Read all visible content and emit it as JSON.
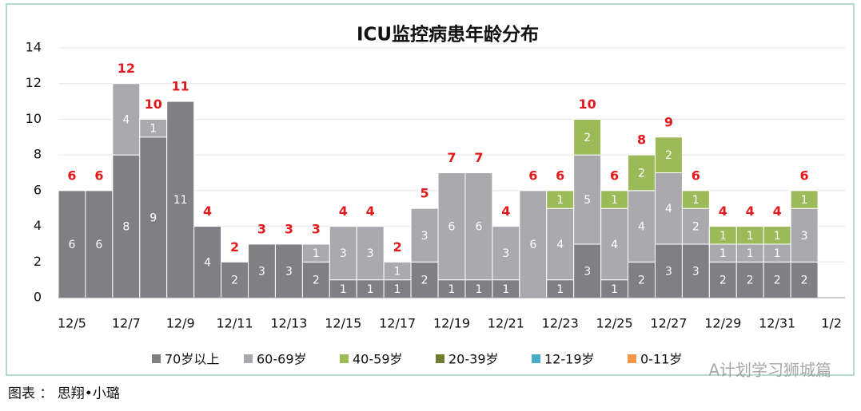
{
  "chart_data": {
    "type": "bar",
    "stacked": true,
    "title": "ICU监控病患年龄分布",
    "categories": [
      "12/5",
      null,
      "12/7",
      null,
      "12/9",
      null,
      "12/11",
      null,
      "12/13",
      null,
      "12/15",
      null,
      "12/17",
      null,
      "12/19",
      null,
      "12/21",
      null,
      "12/23",
      null,
      "12/25",
      null,
      "12/27",
      null,
      "12/29",
      null,
      "12/31",
      null,
      "1/2"
    ],
    "series": [
      {
        "name": "70岁以上",
        "color": "#807f83",
        "values": [
          6,
          6,
          8,
          9,
          11,
          4,
          2,
          3,
          3,
          2,
          1,
          1,
          1,
          2,
          1,
          1,
          1,
          0,
          1,
          3,
          1,
          2,
          3,
          3,
          2,
          2,
          2,
          2,
          null
        ]
      },
      {
        "name": "60-69岁",
        "color": "#aaa9ad",
        "values": [
          0,
          0,
          4,
          1,
          0,
          0,
          0,
          0,
          0,
          1,
          3,
          3,
          1,
          3,
          6,
          6,
          3,
          6,
          4,
          5,
          4,
          4,
          4,
          2,
          1,
          1,
          1,
          3,
          null
        ]
      },
      {
        "name": "40-59岁",
        "color": "#9bbb59",
        "values": [
          0,
          0,
          0,
          0,
          0,
          0,
          0,
          0,
          0,
          0,
          0,
          0,
          0,
          0,
          0,
          0,
          0,
          0,
          1,
          2,
          1,
          2,
          2,
          1,
          1,
          1,
          1,
          1,
          null
        ]
      },
      {
        "name": "20-39岁",
        "color": "#6f7d30",
        "values": [
          0,
          0,
          0,
          0,
          0,
          0,
          0,
          0,
          0,
          0,
          0,
          0,
          0,
          0,
          0,
          0,
          0,
          0,
          0,
          0,
          0,
          0,
          0,
          0,
          0,
          0,
          0,
          0,
          null
        ]
      },
      {
        "name": "12-19岁",
        "color": "#4bacc6",
        "values": [
          0,
          0,
          0,
          0,
          0,
          0,
          0,
          0,
          0,
          0,
          0,
          0,
          0,
          0,
          0,
          0,
          0,
          0,
          0,
          0,
          0,
          0,
          0,
          0,
          0,
          0,
          0,
          0,
          null
        ]
      },
      {
        "name": "0-11岁",
        "color": "#f79646",
        "values": [
          0,
          0,
          0,
          0,
          0,
          0,
          0,
          0,
          0,
          0,
          0,
          0,
          0,
          0,
          0,
          0,
          0,
          0,
          0,
          0,
          0,
          0,
          0,
          0,
          0,
          0,
          0,
          0,
          null
        ]
      }
    ],
    "totals": [
      6,
      6,
      12,
      10,
      11,
      4,
      2,
      3,
      3,
      3,
      4,
      4,
      2,
      5,
      7,
      7,
      4,
      6,
      6,
      10,
      6,
      8,
      9,
      6,
      4,
      4,
      4,
      6,
      null
    ],
    "totals_color": "#e31a1c",
    "ylim": [
      0,
      14
    ],
    "yticks": [
      0,
      2,
      4,
      6,
      8,
      10,
      12,
      14
    ],
    "grid": true,
    "legend": "bottom"
  },
  "footer": "图表 ： 思翔•小璐",
  "watermark": "A计划学习狮城篇"
}
